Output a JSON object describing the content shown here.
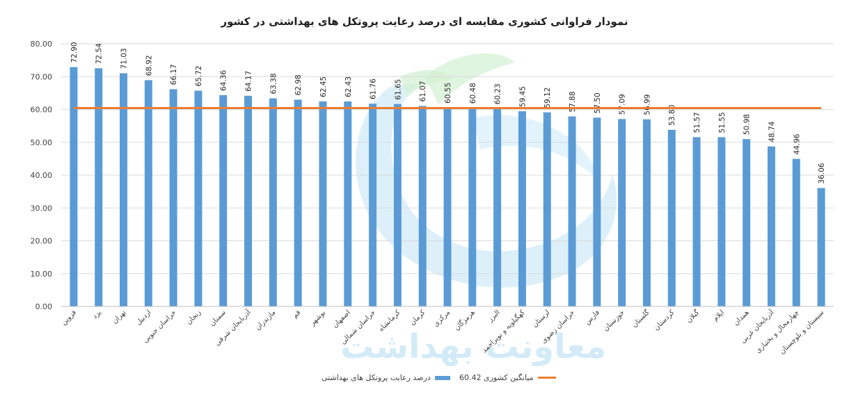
{
  "chart_data": {
    "type": "bar",
    "title": "نمودار فراوانی کشوری مقایسه ای درصد رعایت پروتکل های بهداشتی در کشور",
    "xlabel": "",
    "ylabel": "",
    "ylim": [
      0,
      80
    ],
    "yticks": [
      "0.00",
      "10.00",
      "20.00",
      "30.00",
      "40.00",
      "50.00",
      "60.00",
      "70.00",
      "80.00"
    ],
    "grid": true,
    "legend_position": "bottom",
    "categories": [
      "قزوین",
      "یزد",
      "تهران",
      "اردبیل",
      "خراسان جنوبی",
      "زنجان",
      "سمنان",
      "آذربایجان شرقی",
      "مازندران",
      "قم",
      "بوشهر",
      "اصفهان",
      "خراسان شمالی",
      "کرمانشاه",
      "کرمان",
      "مرکزی",
      "هرمزگان",
      "البرز",
      "کهگیلویه و بویراحمد",
      "لرستان",
      "خراسان رضوی",
      "فارس",
      "خوزستان",
      "گلستان",
      "کردستان",
      "گیلان",
      "ایلام",
      "همدان",
      "آذربایجان غربی",
      "چهارمحال و بختیاری",
      "سیستان و بلوچستان"
    ],
    "series": [
      {
        "name": "درصد رعایت پروتکل های بهداشتی",
        "type": "bar",
        "color": "#5b9bd5",
        "values": [
          72.9,
          72.54,
          71.03,
          68.92,
          66.17,
          65.72,
          64.36,
          64.17,
          63.38,
          62.98,
          62.45,
          62.43,
          61.76,
          61.65,
          61.07,
          60.55,
          60.48,
          60.23,
          59.45,
          59.12,
          57.88,
          57.5,
          57.09,
          56.99,
          53.8,
          51.57,
          51.55,
          50.98,
          48.74,
          44.96,
          36.06
        ],
        "labels": [
          "72.90",
          "72.54",
          "71.03",
          "68.92",
          "66.17",
          "65.72",
          "64.36",
          "64.17",
          "63.38",
          "62.98",
          "62.45",
          "62.43",
          "61.76",
          "61.65",
          "61.07",
          "60.55",
          "60.48",
          "60.23",
          "59.45",
          "59.12",
          "57.88",
          "57.50",
          "57.09",
          "56.99",
          "53.80",
          "51.57",
          "51.55",
          "50.98",
          "48.74",
          "44.96",
          "36.06"
        ]
      },
      {
        "name": "میانگین کشوری 60.42",
        "type": "line",
        "color": "#ed7d31",
        "value": 60.42
      }
    ],
    "watermark": "معاونت بهداشت"
  }
}
